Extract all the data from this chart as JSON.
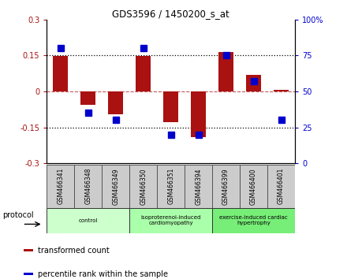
{
  "title": "GDS3596 / 1450200_s_at",
  "samples": [
    "GSM466341",
    "GSM466348",
    "GSM466349",
    "GSM466350",
    "GSM466351",
    "GSM466394",
    "GSM466399",
    "GSM466400",
    "GSM466401"
  ],
  "red_values": [
    0.148,
    -0.055,
    -0.095,
    0.148,
    -0.13,
    -0.19,
    0.165,
    0.07,
    0.005
  ],
  "blue_values": [
    80,
    35,
    30,
    80,
    20,
    20,
    75,
    57,
    30
  ],
  "ylim_left": [
    -0.3,
    0.3
  ],
  "ylim_right": [
    0,
    100
  ],
  "yticks_left": [
    -0.3,
    -0.15,
    0,
    0.15,
    0.3
  ],
  "yticks_right": [
    0,
    25,
    50,
    75,
    100
  ],
  "ytick_labels_left": [
    "-0.3",
    "-0.15",
    "0",
    "0.15",
    "0.3"
  ],
  "ytick_labels_right": [
    "0",
    "25",
    "50",
    "75",
    "100%"
  ],
  "hlines_dotted": [
    -0.15,
    0.15
  ],
  "hline_dashed": 0,
  "groups": [
    {
      "label": "control",
      "start": 0,
      "end": 3,
      "color": "#ccffcc"
    },
    {
      "label": "isoproterenol-induced\ncardiomyopathy",
      "start": 3,
      "end": 6,
      "color": "#aaffaa"
    },
    {
      "label": "exercise-induced cardiac\nhypertrophy",
      "start": 6,
      "end": 9,
      "color": "#77ee77"
    }
  ],
  "red_color": "#aa1111",
  "blue_color": "#0000cc",
  "bar_width": 0.55,
  "marker_size": 6,
  "protocol_label": "protocol",
  "legend_items": [
    {
      "color": "#aa1111",
      "label": "transformed count"
    },
    {
      "color": "#0000cc",
      "label": "percentile rank within the sample"
    }
  ]
}
